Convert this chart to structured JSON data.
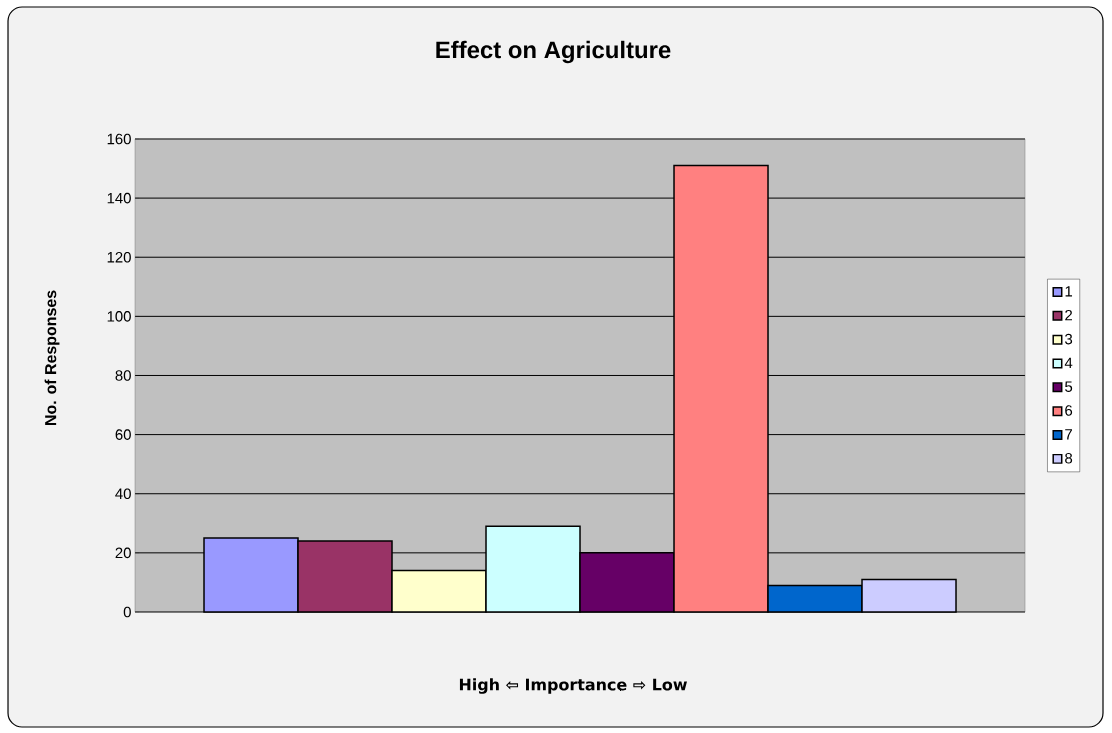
{
  "chart_data": {
    "type": "bar",
    "title": "Effect on Agriculture",
    "xlabel": "High ⇦ Importance ⇨ Low",
    "ylabel": "No. of Responses",
    "categories": [
      null
    ],
    "series": [
      {
        "name": "1",
        "color": "#9999ff",
        "values": [
          25
        ]
      },
      {
        "name": "2",
        "color": "#993366",
        "values": [
          24
        ]
      },
      {
        "name": "3",
        "color": "#ffffcc",
        "values": [
          14
        ]
      },
      {
        "name": "4",
        "color": "#ccffff",
        "values": [
          29
        ]
      },
      {
        "name": "5",
        "color": "#660066",
        "values": [
          20
        ]
      },
      {
        "name": "6",
        "color": "#ff8080",
        "values": [
          151
        ]
      },
      {
        "name": "7",
        "color": "#0066cc",
        "values": [
          9
        ]
      },
      {
        "name": "8",
        "color": "#ccccff",
        "values": [
          11
        ]
      }
    ],
    "ylim": [
      0,
      160
    ],
    "yticks": [
      0,
      20,
      40,
      60,
      80,
      100,
      120,
      140,
      160
    ],
    "grid": "y",
    "legend": "right"
  }
}
